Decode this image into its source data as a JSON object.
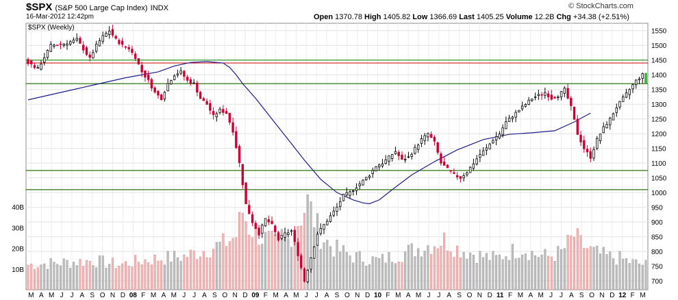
{
  "header": {
    "symbol": "$SPX",
    "description": "(S&P 500 Large Cap Index)",
    "exchange": "INDX",
    "datetime": "16-Mar-2012 12:42pm",
    "logo_text": "© StockCharts.com",
    "quote": [
      {
        "label": "Open",
        "value": "1370.78"
      },
      {
        "label": "High",
        "value": "1405.82"
      },
      {
        "label": "Low",
        "value": "1366.69"
      },
      {
        "label": "Last",
        "value": "1405.25"
      },
      {
        "label": "Volume",
        "value": "12.2B"
      },
      {
        "label": "Chg",
        "value": "+34.38 (+2.51%)"
      }
    ]
  },
  "chart_data": {
    "type": "candlestick",
    "title": "$SPX (Weekly)",
    "y_axis": {
      "ticks": [
        700,
        750,
        800,
        850,
        900,
        950,
        1000,
        1050,
        1100,
        1150,
        1200,
        1250,
        1300,
        1350,
        1400,
        1450,
        1500,
        1550
      ],
      "range": [
        670,
        1575
      ],
      "position": "right"
    },
    "volume_axis": {
      "ticks": [
        "10B",
        "20B",
        "30B",
        "40B"
      ],
      "position": "left"
    },
    "x_axis": {
      "labels": [
        "M",
        "A",
        "M",
        "J",
        "J",
        "A",
        "S",
        "O",
        "N",
        "D",
        "08",
        "F",
        "M",
        "A",
        "M",
        "J",
        "J",
        "A",
        "S",
        "O",
        "N",
        "D",
        "09",
        "F",
        "M",
        "A",
        "M",
        "J",
        "J",
        "A",
        "S",
        "O",
        "N",
        "D",
        "10",
        "F",
        "M",
        "A",
        "M",
        "J",
        "J",
        "A",
        "S",
        "O",
        "N",
        "D",
        "11",
        "F",
        "M",
        "A",
        "M",
        "J",
        "J",
        "A",
        "S",
        "O",
        "N",
        "D",
        "12",
        "F",
        "M"
      ]
    },
    "horizontal_lines": [
      {
        "value": 1440,
        "color": "#cc0000"
      },
      {
        "value": 1370,
        "color": "#cc0000"
      },
      {
        "value": 1075,
        "color": "#cc0000"
      },
      {
        "value": 1010,
        "color": "#cc0000"
      },
      {
        "value": 1450,
        "color": "#008000"
      },
      {
        "value": 1370,
        "color": "#008000"
      },
      {
        "value": 1075,
        "color": "#008000"
      },
      {
        "value": 1010,
        "color": "#008000"
      }
    ],
    "moving_average": {
      "color": "#1a1a8c",
      "points": [
        [
          0,
          1315
        ],
        [
          10,
          1340
        ],
        [
          20,
          1365
        ],
        [
          30,
          1390
        ],
        [
          40,
          1410
        ],
        [
          45,
          1430
        ],
        [
          50,
          1442
        ],
        [
          55,
          1445
        ],
        [
          60,
          1440
        ],
        [
          62,
          1425
        ],
        [
          64,
          1400
        ],
        [
          66,
          1370
        ],
        [
          70,
          1320
        ],
        [
          75,
          1250
        ],
        [
          80,
          1180
        ],
        [
          85,
          1110
        ],
        [
          90,
          1045
        ],
        [
          95,
          1000
        ],
        [
          100,
          975
        ],
        [
          103,
          965
        ],
        [
          105,
          962
        ],
        [
          108,
          975
        ],
        [
          112,
          1010
        ],
        [
          118,
          1060
        ],
        [
          125,
          1105
        ],
        [
          132,
          1145
        ],
        [
          140,
          1180
        ],
        [
          148,
          1198
        ],
        [
          155,
          1203
        ],
        [
          162,
          1210
        ],
        [
          168,
          1240
        ],
        [
          173,
          1270
        ]
      ]
    },
    "anchors": [
      [
        0,
        1450
      ],
      [
        4,
        1420
      ],
      [
        8,
        1500
      ],
      [
        12,
        1505
      ],
      [
        16,
        1520
      ],
      [
        20,
        1455
      ],
      [
        22,
        1500
      ],
      [
        24,
        1530
      ],
      [
        26,
        1550
      ],
      [
        28,
        1520
      ],
      [
        30,
        1500
      ],
      [
        32,
        1490
      ],
      [
        34,
        1460
      ],
      [
        36,
        1410
      ],
      [
        38,
        1380
      ],
      [
        40,
        1340
      ],
      [
        42,
        1320
      ],
      [
        44,
        1370
      ],
      [
        46,
        1400
      ],
      [
        48,
        1410
      ],
      [
        50,
        1380
      ],
      [
        52,
        1370
      ],
      [
        54,
        1320
      ],
      [
        56,
        1300
      ],
      [
        58,
        1260
      ],
      [
        60,
        1280
      ],
      [
        62,
        1270
      ],
      [
        64,
        1210
      ],
      [
        66,
        1100
      ],
      [
        68,
        960
      ],
      [
        70,
        900
      ],
      [
        72,
        860
      ],
      [
        74,
        910
      ],
      [
        76,
        890
      ],
      [
        78,
        840
      ],
      [
        80,
        860
      ],
      [
        82,
        870
      ],
      [
        84,
        790
      ],
      [
        86,
        700
      ],
      [
        88,
        780
      ],
      [
        90,
        860
      ],
      [
        92,
        890
      ],
      [
        94,
        920
      ],
      [
        96,
        950
      ],
      [
        98,
        990
      ],
      [
        100,
        1000
      ],
      [
        102,
        1020
      ],
      [
        104,
        1040
      ],
      [
        106,
        1060
      ],
      [
        108,
        1090
      ],
      [
        110,
        1100
      ],
      [
        112,
        1120
      ],
      [
        114,
        1140
      ],
      [
        116,
        1110
      ],
      [
        118,
        1120
      ],
      [
        120,
        1150
      ],
      [
        122,
        1180
      ],
      [
        124,
        1200
      ],
      [
        126,
        1170
      ],
      [
        128,
        1100
      ],
      [
        130,
        1080
      ],
      [
        132,
        1060
      ],
      [
        134,
        1050
      ],
      [
        136,
        1070
      ],
      [
        138,
        1100
      ],
      [
        140,
        1130
      ],
      [
        142,
        1150
      ],
      [
        144,
        1180
      ],
      [
        146,
        1200
      ],
      [
        148,
        1240
      ],
      [
        150,
        1260
      ],
      [
        152,
        1280
      ],
      [
        154,
        1300
      ],
      [
        156,
        1320
      ],
      [
        158,
        1330
      ],
      [
        160,
        1340
      ],
      [
        162,
        1320
      ],
      [
        164,
        1330
      ],
      [
        166,
        1350
      ],
      [
        168,
        1290
      ],
      [
        170,
        1200
      ],
      [
        172,
        1150
      ],
      [
        174,
        1120
      ],
      [
        176,
        1180
      ],
      [
        178,
        1220
      ],
      [
        180,
        1250
      ],
      [
        182,
        1290
      ],
      [
        184,
        1320
      ],
      [
        186,
        1350
      ],
      [
        188,
        1380
      ],
      [
        190,
        1400
      ]
    ],
    "volume_anchors": [
      [
        0,
        12
      ],
      [
        10,
        13
      ],
      [
        20,
        14
      ],
      [
        28,
        12
      ],
      [
        35,
        14
      ],
      [
        40,
        15
      ],
      [
        48,
        16
      ],
      [
        52,
        18
      ],
      [
        56,
        20
      ],
      [
        60,
        22
      ],
      [
        64,
        26
      ],
      [
        66,
        38
      ],
      [
        68,
        30
      ],
      [
        70,
        28
      ],
      [
        72,
        25
      ],
      [
        74,
        24
      ],
      [
        76,
        22
      ],
      [
        78,
        26
      ],
      [
        80,
        24
      ],
      [
        84,
        36
      ],
      [
        86,
        42
      ],
      [
        88,
        34
      ],
      [
        90,
        26
      ],
      [
        94,
        20
      ],
      [
        100,
        16
      ],
      [
        104,
        15
      ],
      [
        108,
        14
      ],
      [
        112,
        16
      ],
      [
        116,
        18
      ],
      [
        120,
        20
      ],
      [
        124,
        22
      ],
      [
        128,
        24
      ],
      [
        132,
        20
      ],
      [
        136,
        18
      ],
      [
        140,
        16
      ],
      [
        144,
        15
      ],
      [
        148,
        18
      ],
      [
        152,
        20
      ],
      [
        156,
        17
      ],
      [
        160,
        16
      ],
      [
        164,
        18
      ],
      [
        168,
        26
      ],
      [
        170,
        22
      ],
      [
        174,
        18
      ],
      [
        178,
        16
      ],
      [
        182,
        15
      ],
      [
        186,
        13
      ],
      [
        190,
        12
      ]
    ]
  }
}
